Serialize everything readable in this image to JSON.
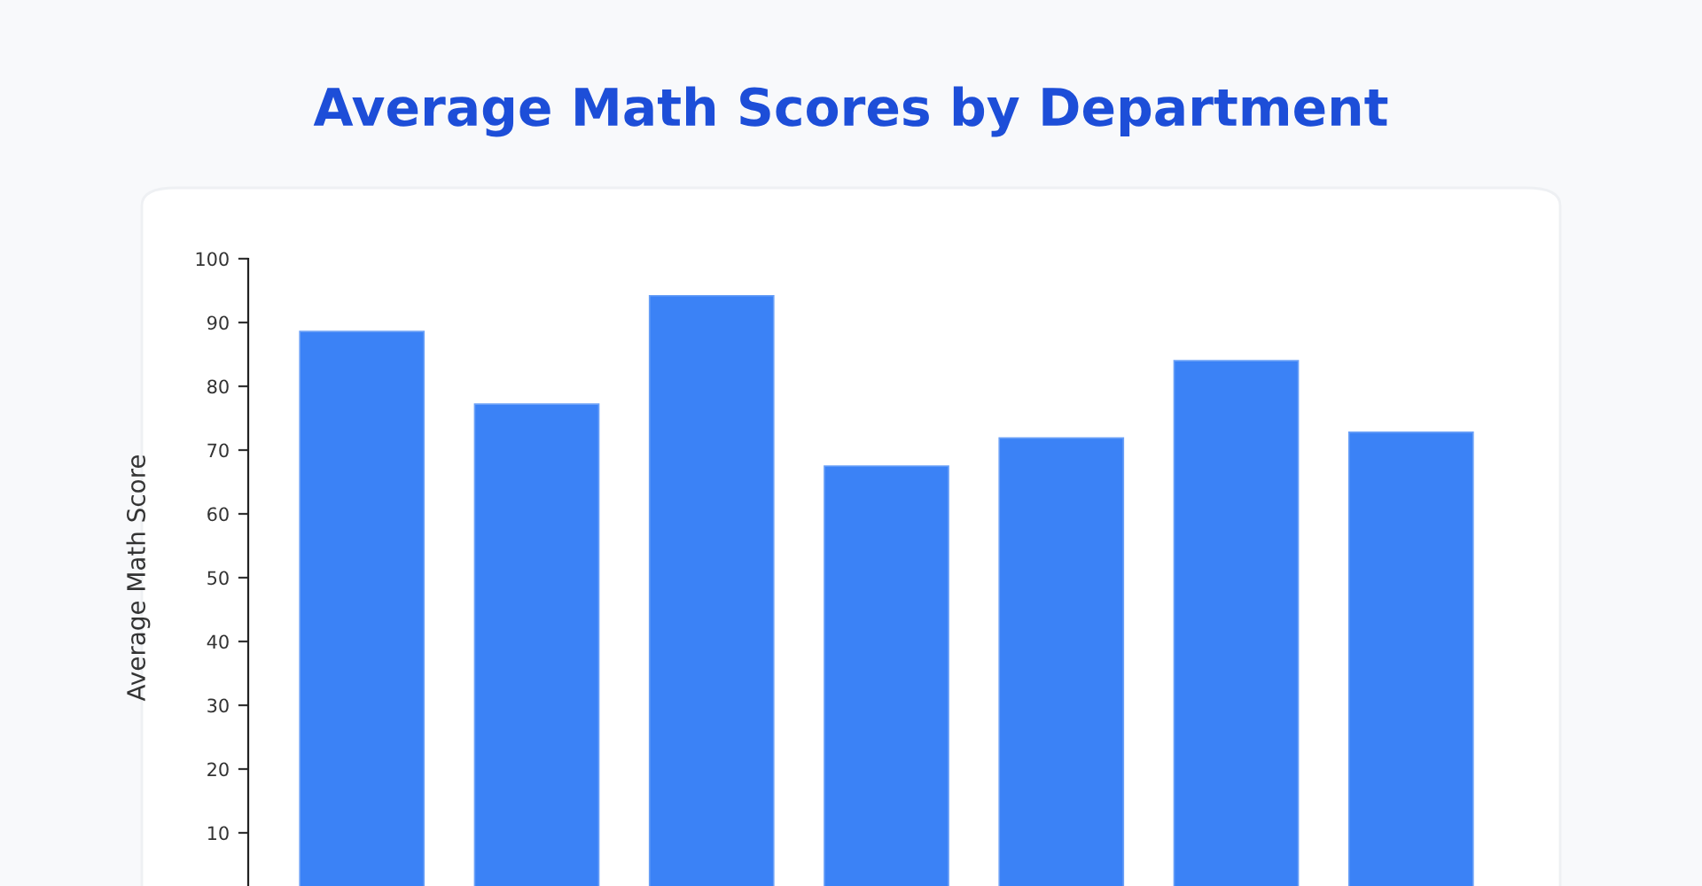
{
  "chart_data": {
    "type": "bar",
    "title": "Average Math Scores by Department",
    "ylabel": "Average Math Score",
    "categories": [
      null,
      null,
      null,
      null,
      null,
      null,
      null
    ],
    "values": [
      88.6,
      77.2,
      94.2,
      67.5,
      71.9,
      84.0,
      72.8
    ],
    "color": "#3b82f6",
    "ylim": [
      0,
      100
    ],
    "yticks": [
      10,
      20,
      30,
      40,
      50,
      60,
      70,
      80,
      90,
      100
    ],
    "tick_labels": "y",
    "grid": false
  }
}
